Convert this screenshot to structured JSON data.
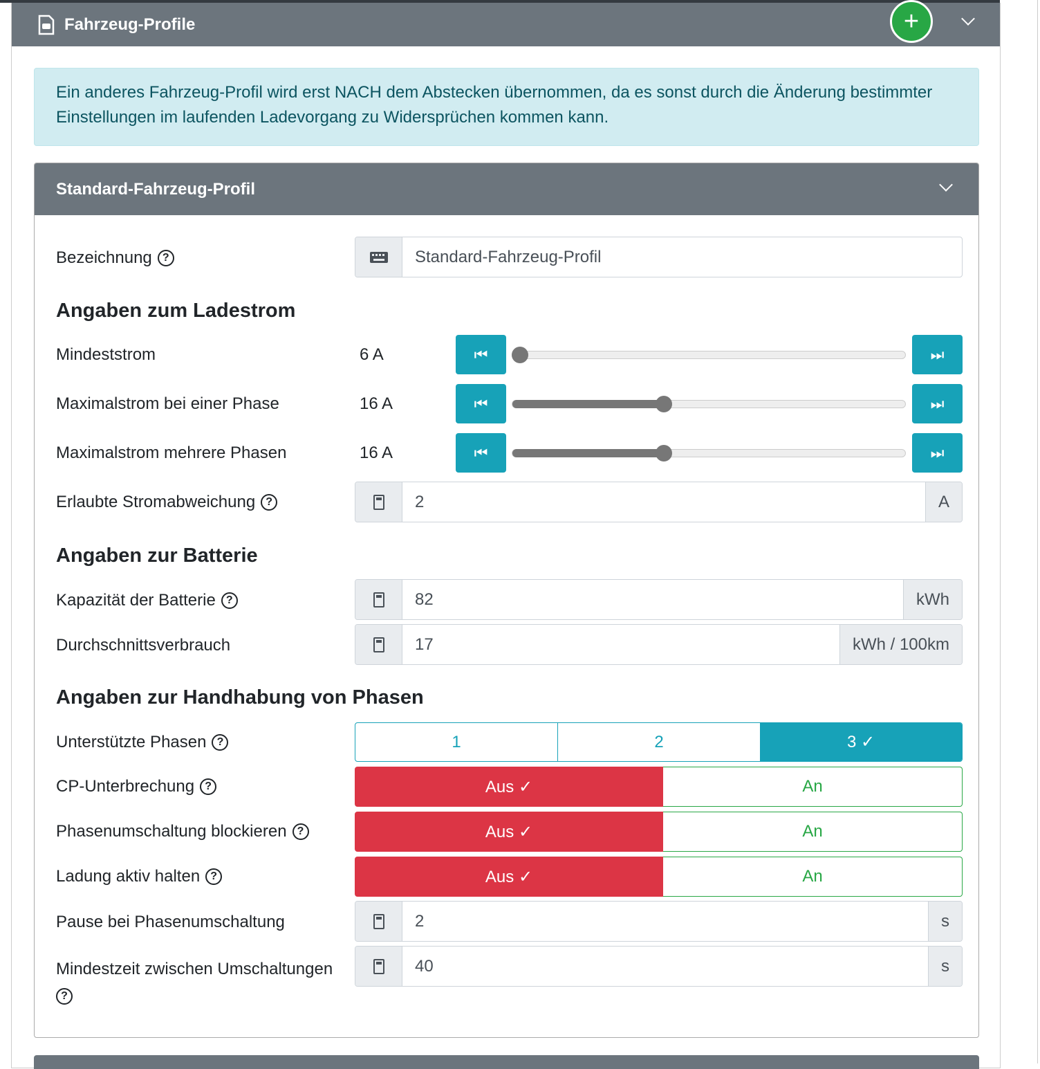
{
  "header": {
    "title": "Fahrzeug-Profile",
    "add_icon": "plus-icon",
    "collapse_icon": "chevron-down-icon"
  },
  "alert": "Ein anderes Fahrzeug-Profil wird erst NACH dem Abstecken übernommen, da es sonst durch die Änderung bestimmter Einstellungen im laufenden Ladevorgang zu Widersprüchen kommen kann.",
  "card": {
    "title": "Standard-Fahrzeug-Profil"
  },
  "name": {
    "label": "Bezeichnung",
    "value": "Standard-Fahrzeug-Profil"
  },
  "sections": {
    "current": "Angaben zum Ladestrom",
    "battery": "Angaben zur Batterie",
    "phases": "Angaben zur Handhabung von Phasen"
  },
  "sliders": [
    {
      "label": "Mindeststrom",
      "value": "6 A",
      "fraction": 0
    },
    {
      "label": "Maximalstrom bei einer Phase",
      "value": "16 A",
      "fraction": 0.385
    },
    {
      "label": "Maximalstrom mehrere Phasen",
      "value": "16 A",
      "fraction": 0.385
    }
  ],
  "deviation": {
    "label": "Erlaubte Stromabweichung",
    "value": "2",
    "unit": "A"
  },
  "capacity": {
    "label": "Kapazität der Batterie",
    "value": "82",
    "unit": "kWh"
  },
  "consumption": {
    "label": "Durchschnittsverbrauch",
    "value": "17",
    "unit": "kWh / 100km"
  },
  "phases": {
    "label": "Unterstützte Phasen",
    "options": [
      "1",
      "2",
      "3 ✓"
    ],
    "selected": "3"
  },
  "toggles": [
    {
      "label": "CP-Unterbrechung",
      "off": "Aus ✓",
      "on": "An"
    },
    {
      "label": "Phasenumschaltung blockieren",
      "off": "Aus ✓",
      "on": "An"
    },
    {
      "label": "Ladung aktiv halten",
      "off": "Aus ✓",
      "on": "An"
    }
  ],
  "pause": {
    "label": "Pause bei Phasenumschaltung",
    "value": "2",
    "unit": "s"
  },
  "mintime": {
    "label": "Mindestzeit zwischen Umschaltungen",
    "value": "40",
    "unit": "s"
  },
  "colors": {
    "info": "#17a2b8",
    "danger": "#dc3545",
    "success": "#28a745",
    "header": "#6c757d"
  }
}
